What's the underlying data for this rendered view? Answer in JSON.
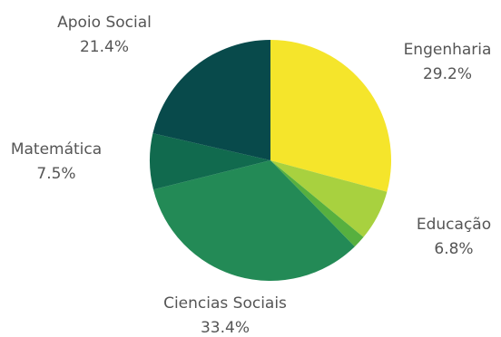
{
  "chart_data": {
    "type": "pie",
    "title": "",
    "slices": [
      {
        "label": "Engenharia",
        "value": 29.2,
        "display": "29.2%",
        "color": "#f5e52b"
      },
      {
        "label": "Educação",
        "value": 6.8,
        "display": "6.8%",
        "color": "#a8d13f"
      },
      {
        "label": "",
        "value": 1.7,
        "display": "",
        "color": "#57b03f"
      },
      {
        "label": "Ciencias Sociais",
        "value": 33.4,
        "display": "33.4%",
        "color": "#238a56"
      },
      {
        "label": "Matemática",
        "value": 7.5,
        "display": "7.5%",
        "color": "#116a4e"
      },
      {
        "label": "Apoio Social",
        "value": 21.4,
        "display": "21.4%",
        "color": "#084a4b"
      }
    ],
    "start": "12 o'clock",
    "direction": "clockwise",
    "legend": "none"
  }
}
